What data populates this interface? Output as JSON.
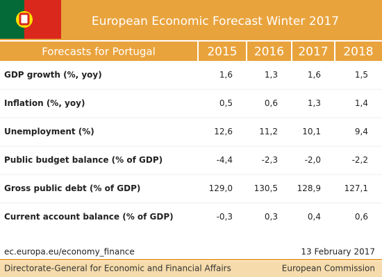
{
  "header": {
    "title": "European Economic Forecast Winter 2017"
  },
  "table": {
    "columns": [
      "Forecasts for Portugal",
      "2015",
      "2016",
      "2017",
      "2018"
    ],
    "rows": [
      [
        "GDP growth (%, yoy)",
        "1,6",
        "1,3",
        "1,6",
        "1,5"
      ],
      [
        "Inflation (%, yoy)",
        "0,5",
        "0,6",
        "1,3",
        "1,4"
      ],
      [
        "Unemployment (%)",
        "12,6",
        "11,2",
        "10,1",
        "9,4"
      ],
      [
        "Public budget balance (% of GDP)",
        "-4,4",
        "-2,3",
        "-2,0",
        "-2,2"
      ],
      [
        "Gross public debt (% of GDP)",
        "129,0",
        "130,5",
        "128,9",
        "127,1"
      ],
      [
        "Current account balance (% of GDP)",
        "-0,3",
        "0,3",
        "0,4",
        "0,6"
      ]
    ]
  },
  "footer": {
    "url": "ec.europa.eu/economy_finance",
    "date": "13 February 2017",
    "department": "Directorate-General for Economic and Financial Affairs",
    "organization": "European Commission"
  }
}
